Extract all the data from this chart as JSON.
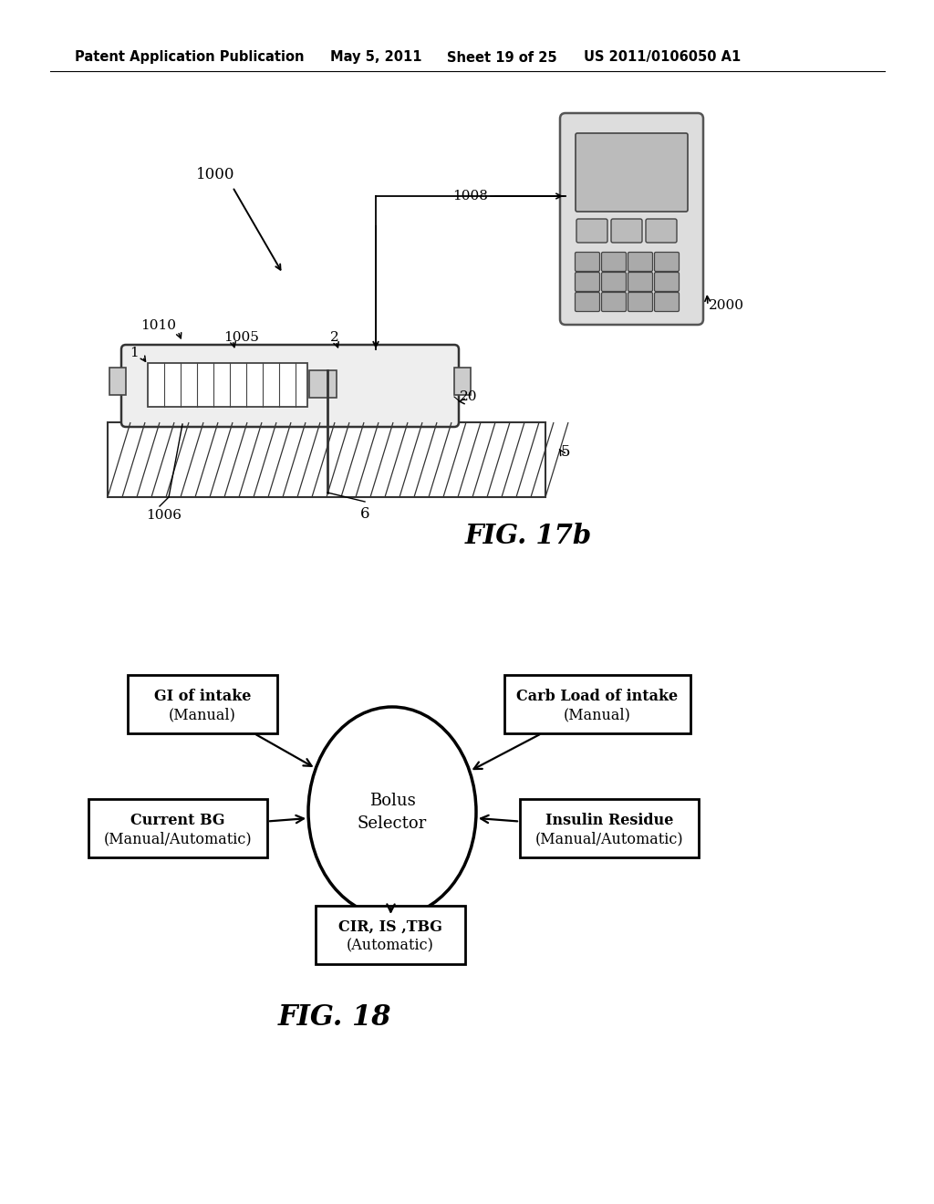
{
  "bg_color": "#ffffff",
  "header_text": "Patent Application Publication",
  "header_date": "May 5, 2011",
  "header_sheet": "Sheet 19 of 25",
  "header_patent": "US 2011/0106050 A1",
  "fig17b_label": "FIG. 17b",
  "fig18_label": "FIG. 18"
}
